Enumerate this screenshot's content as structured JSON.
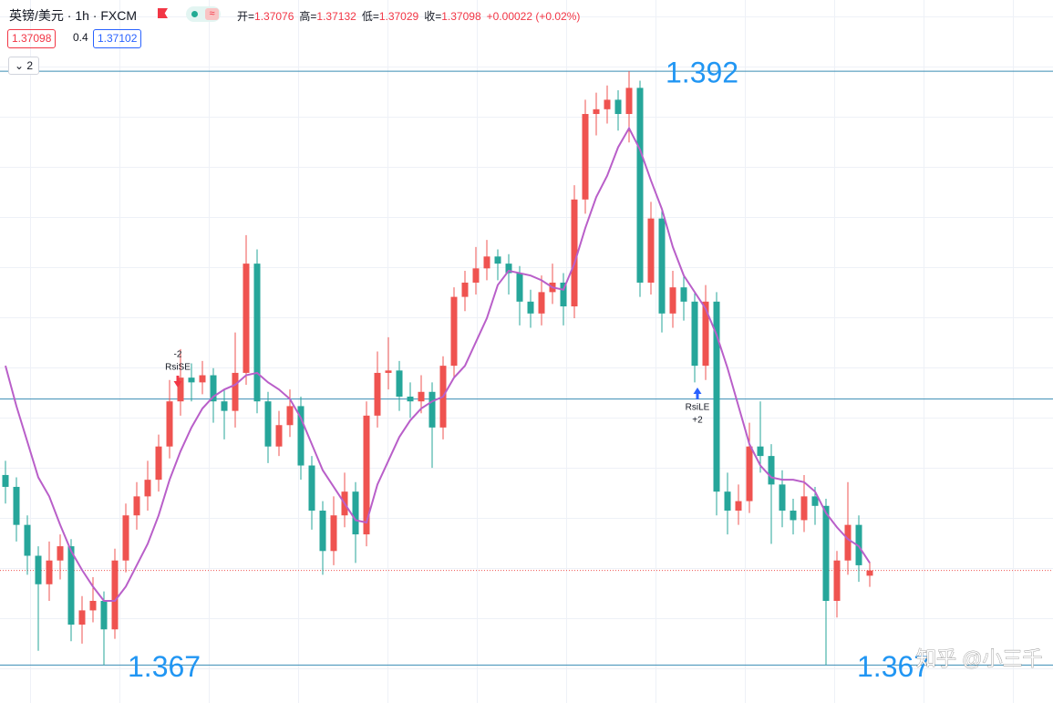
{
  "header": {
    "symbol": "英镑/美元 · 1h · FXCM",
    "ohlc": [
      {
        "label": "开=",
        "value": 1.37076
      },
      {
        "label": "高=",
        "value": 1.37132
      },
      {
        "label": "低=",
        "value": 1.37029
      },
      {
        "label": "收=",
        "value": 1.37098
      }
    ],
    "change": "+0.00022 (+0.02%)",
    "bid": 1.37098,
    "spread": 0.4,
    "ask": 1.37102,
    "collapse": "2"
  },
  "chart_data": {
    "type": "candlestick",
    "open": [
      1.375,
      1.3745,
      1.3729,
      1.3716,
      1.3704,
      1.3714,
      1.372,
      1.3687,
      1.3693,
      1.3697,
      1.3685,
      1.3714,
      1.3733,
      1.3741,
      1.3748,
      1.3762,
      1.3781,
      1.3791,
      1.3789,
      1.3792,
      1.3781,
      1.3777,
      1.3793,
      1.3839,
      1.3781,
      1.3762,
      1.3771,
      1.3779,
      1.3754,
      1.3735,
      1.3718,
      1.3733,
      1.3743,
      1.3725,
      1.3775,
      1.3793,
      1.3794,
      1.3783,
      1.3781,
      1.3785,
      1.377,
      1.3796,
      1.3825,
      1.3831,
      1.3837,
      1.3842,
      1.3839,
      1.3835,
      1.3823,
      1.3818,
      1.3827,
      1.3831,
      1.3821,
      1.3866,
      1.3902,
      1.3904,
      1.3908,
      1.3902,
      1.3913,
      1.3831,
      1.3858,
      1.3818,
      1.3829,
      1.3823,
      1.3796,
      1.3823,
      1.3743,
      1.3735,
      1.3739,
      1.3762,
      1.3758,
      1.3746,
      1.3735,
      1.3731,
      1.3741,
      1.3737,
      1.3697,
      1.3714,
      1.3729,
      1.37076
    ],
    "high": [
      1.3756,
      1.3749,
      1.3733,
      1.372,
      1.3722,
      1.3725,
      1.3723,
      1.3699,
      1.3707,
      1.3701,
      1.3719,
      1.3738,
      1.3747,
      1.3756,
      1.3767,
      1.379,
      1.3803,
      1.3797,
      1.3798,
      1.3795,
      1.3786,
      1.381,
      1.3851,
      1.3845,
      1.3785,
      1.3777,
      1.3786,
      1.3783,
      1.3758,
      1.3739,
      1.3741,
      1.3751,
      1.3747,
      1.3781,
      1.3802,
      1.3808,
      1.3798,
      1.3789,
      1.3792,
      1.3789,
      1.38,
      1.3829,
      1.3836,
      1.3846,
      1.3849,
      1.3845,
      1.3843,
      1.3838,
      1.3828,
      1.3834,
      1.3839,
      1.3835,
      1.3872,
      1.3908,
      1.3911,
      1.3914,
      1.3912,
      1.392,
      1.3916,
      1.3865,
      1.3862,
      1.3836,
      1.3834,
      1.3827,
      1.383,
      1.3827,
      1.3751,
      1.3746,
      1.3772,
      1.3781,
      1.3763,
      1.3752,
      1.374,
      1.375,
      1.3745,
      1.374,
      1.3718,
      1.3747,
      1.3733,
      1.37132
    ],
    "low": [
      1.3738,
      1.3722,
      1.3708,
      1.3676,
      1.3697,
      1.3706,
      1.368,
      1.3679,
      1.3688,
      1.367,
      1.3681,
      1.3709,
      1.3727,
      1.3735,
      1.3743,
      1.3757,
      1.3775,
      1.3781,
      1.3784,
      1.3772,
      1.3765,
      1.377,
      1.3788,
      1.3776,
      1.3755,
      1.3758,
      1.3766,
      1.3748,
      1.3727,
      1.3708,
      1.3712,
      1.3728,
      1.3713,
      1.372,
      1.377,
      1.3786,
      1.3777,
      1.3774,
      1.3776,
      1.3753,
      1.3765,
      1.3791,
      1.3819,
      1.3826,
      1.3832,
      1.3832,
      1.3826,
      1.3813,
      1.3812,
      1.3813,
      1.3822,
      1.3813,
      1.3816,
      1.386,
      1.3893,
      1.3898,
      1.3895,
      1.389,
      1.3825,
      1.3826,
      1.381,
      1.3812,
      1.3815,
      1.3789,
      1.379,
      1.3733,
      1.3725,
      1.3729,
      1.3734,
      1.3751,
      1.3721,
      1.3728,
      1.3725,
      1.3726,
      1.3729,
      1.367,
      1.369,
      1.3708,
      1.3705,
      1.37029
    ],
    "close": [
      1.3745,
      1.3729,
      1.3716,
      1.3704,
      1.3714,
      1.372,
      1.3687,
      1.3693,
      1.3697,
      1.3685,
      1.3714,
      1.3733,
      1.3741,
      1.3748,
      1.3762,
      1.3781,
      1.3791,
      1.3789,
      1.3792,
      1.3781,
      1.3777,
      1.3793,
      1.3839,
      1.3781,
      1.3762,
      1.3771,
      1.3779,
      1.3754,
      1.3735,
      1.3718,
      1.3733,
      1.3743,
      1.3725,
      1.3775,
      1.3793,
      1.3794,
      1.3783,
      1.3781,
      1.3785,
      1.377,
      1.3796,
      1.3825,
      1.3831,
      1.3837,
      1.3842,
      1.3839,
      1.3835,
      1.3823,
      1.3818,
      1.3827,
      1.3831,
      1.3821,
      1.3866,
      1.3902,
      1.3904,
      1.3908,
      1.3902,
      1.3913,
      1.3831,
      1.3858,
      1.3818,
      1.3829,
      1.3823,
      1.3796,
      1.3823,
      1.3743,
      1.3735,
      1.3739,
      1.3762,
      1.3758,
      1.3746,
      1.3735,
      1.3731,
      1.3741,
      1.3737,
      1.3697,
      1.3714,
      1.3729,
      1.3712,
      1.37098
    ],
    "up_color": "#ef5350",
    "down_color": "#26a69a",
    "ylim": [
      1.3654,
      1.395
    ],
    "grid": true,
    "moving_average": {
      "color": "#b95fc9",
      "values": [
        1.3796,
        1.3779,
        1.3764,
        1.3749,
        1.3741,
        1.3729,
        1.3718,
        1.371,
        1.3703,
        1.3697,
        1.3697,
        1.3703,
        1.3712,
        1.3721,
        1.3733,
        1.3748,
        1.376,
        1.377,
        1.3778,
        1.3783,
        1.3786,
        1.3788,
        1.3792,
        1.3793,
        1.3789,
        1.3786,
        1.3782,
        1.3774,
        1.3763,
        1.3752,
        1.3745,
        1.3738,
        1.3731,
        1.373,
        1.3746,
        1.3756,
        1.3766,
        1.3773,
        1.3778,
        1.3781,
        1.3783,
        1.3791,
        1.3796,
        1.3806,
        1.3816,
        1.383,
        1.3836,
        1.3835,
        1.3834,
        1.3832,
        1.3829,
        1.3828,
        1.3839,
        1.3854,
        1.3867,
        1.3876,
        1.3888,
        1.3896,
        1.3887,
        1.3874,
        1.3862,
        1.3846,
        1.3834,
        1.3827,
        1.382,
        1.3809,
        1.3795,
        1.3779,
        1.3763,
        1.3754,
        1.3749,
        1.3748,
        1.3748,
        1.3747,
        1.3743,
        1.3734,
        1.3728,
        1.3723,
        1.372,
        1.3713
      ]
    },
    "hlines": [
      {
        "value": 1.392,
        "labels": [
          "1.392"
        ]
      },
      {
        "value": 1.3782
      },
      {
        "value": 1.367,
        "labels": [
          "1.367",
          "1.367"
        ]
      }
    ],
    "hline_color": "#3a8db5",
    "label_color": "#2196f3",
    "last_price_color": "#ef5350",
    "signals": [
      {
        "labels": [
          "-2",
          "RsiSE"
        ],
        "color": "#f23645"
      },
      {
        "labels": [
          "RsiLE",
          "+2"
        ],
        "color": "#2962ff"
      }
    ],
    "watermark": "知乎 @小三千"
  }
}
